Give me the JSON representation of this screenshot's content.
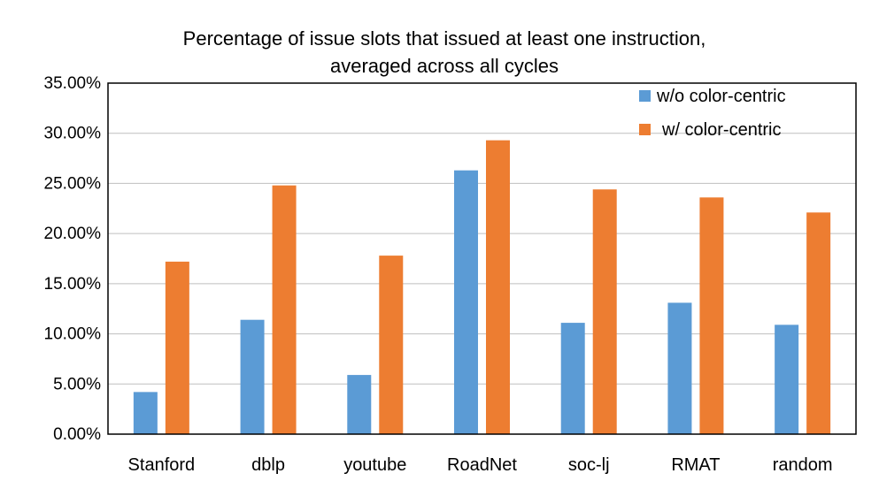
{
  "chart_data": {
    "type": "bar",
    "title_lines": [
      "Percentage of issue slots that issued at least one instruction,",
      "averaged across all cycles"
    ],
    "categories": [
      "Stanford",
      "dblp",
      "youtube",
      "RoadNet",
      "soc-lj",
      "RMAT",
      "random"
    ],
    "series": [
      {
        "name": "w/o color-centric",
        "color": "#5b9bd5",
        "values": [
          4.2,
          11.4,
          5.9,
          26.3,
          11.1,
          13.1,
          10.9
        ]
      },
      {
        "name": "w/ color-centric",
        "color": "#ed7d31",
        "values": [
          17.2,
          24.8,
          17.8,
          29.3,
          24.4,
          23.6,
          22.1
        ]
      }
    ],
    "ylim": [
      0,
      35
    ],
    "yticks": [
      0,
      5,
      10,
      15,
      20,
      25,
      30,
      35
    ],
    "ytick_labels": [
      "0.00%",
      "5.00%",
      "10.00%",
      "15.00%",
      "20.00%",
      "25.00%",
      "30.00%",
      "35.00%"
    ],
    "xlabel": "",
    "ylabel": "",
    "grid": true,
    "legend_position": "top-right"
  }
}
